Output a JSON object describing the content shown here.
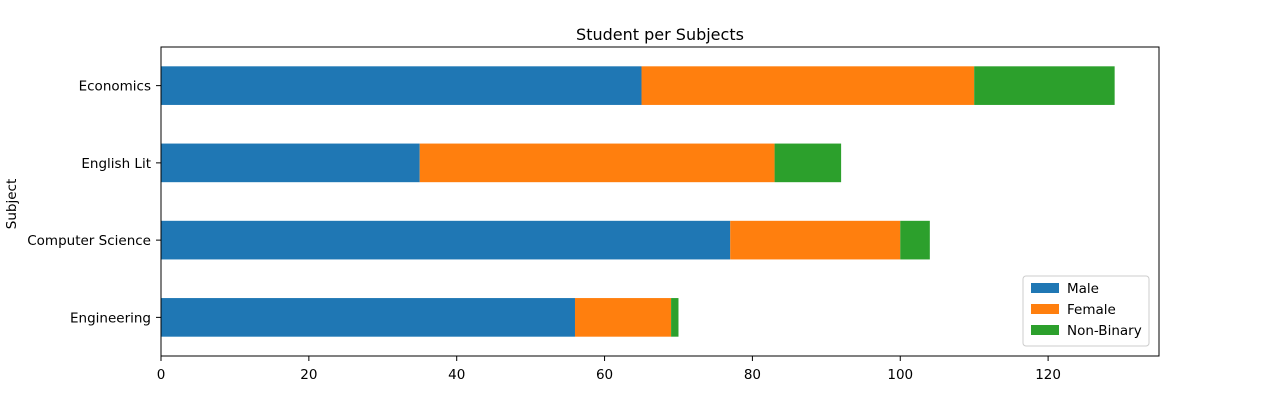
{
  "chart_data": {
    "type": "bar",
    "orientation": "horizontal",
    "stacked": true,
    "title": "Student per Subjects",
    "xlabel": "",
    "ylabel": "Subject",
    "categories": [
      "Engineering",
      "Computer Science",
      "English Lit",
      "Economics"
    ],
    "series": [
      {
        "name": "Male",
        "color": "#1f77b4",
        "values": [
          56,
          77,
          35,
          65
        ]
      },
      {
        "name": "Female",
        "color": "#ff7f0e",
        "values": [
          13,
          23,
          48,
          45
        ]
      },
      {
        "name": "Non-Binary",
        "color": "#2ca02c",
        "values": [
          1,
          4,
          9,
          19
        ]
      }
    ],
    "xlim": [
      0,
      135
    ],
    "xticks": [
      0,
      20,
      40,
      60,
      80,
      100,
      120
    ],
    "grid": false,
    "legend_position": "lower-right"
  }
}
